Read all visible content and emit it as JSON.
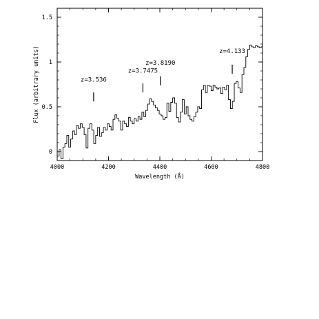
{
  "chart_data": {
    "type": "line",
    "title": "",
    "xlabel": "Wavelength (Å)",
    "ylabel": "Flux (arbitrary units)",
    "xlim": [
      4000,
      4800
    ],
    "ylim": [
      -0.1,
      1.6
    ],
    "x_ticks": [
      {
        "value": 4000,
        "label": "4000"
      },
      {
        "value": 4200,
        "label": "4200"
      },
      {
        "value": 4400,
        "label": "4400"
      },
      {
        "value": 4600,
        "label": "4600"
      },
      {
        "value": 4800,
        "label": "4800"
      }
    ],
    "y_ticks": [
      {
        "value": 0,
        "label": "0"
      },
      {
        "value": 0.5,
        "label": "0.5"
      },
      {
        "value": 1,
        "label": "1"
      },
      {
        "value": 1.5,
        "label": "1.5"
      }
    ],
    "x_minor_step": 50,
    "y_minor_step": 0.1,
    "grid": false,
    "line_color": "#000000",
    "step_width": 7.5,
    "annotations": [
      {
        "text": "z=3.536",
        "x": 4142,
        "mark_y": [
          0.56,
          0.66
        ],
        "label_y": 0.78
      },
      {
        "text": "z=3.7475",
        "x": 4334,
        "mark_y": [
          0.66,
          0.76
        ],
        "label_y": 0.88
      },
      {
        "text": "z=3.8190",
        "x": 4402,
        "mark_y": [
          0.74,
          0.84
        ],
        "label_y": 0.97
      },
      {
        "text": "z=4.133",
        "x": 4682,
        "mark_y": [
          0.87,
          0.97
        ],
        "label_y": 1.1
      }
    ],
    "series": [
      {
        "x": [
          4000,
          4007.5,
          4015,
          4022.5,
          4030,
          4037.5,
          4045,
          4052.5,
          4060,
          4067.5,
          4075,
          4082.5,
          4090,
          4097.5,
          4105,
          4112.5,
          4120,
          4127.5,
          4135,
          4142.5,
          4150,
          4157.5,
          4165,
          4172.5,
          4180,
          4187.5,
          4195,
          4202.5,
          4210,
          4217.5,
          4225,
          4232.5,
          4240,
          4247.5,
          4255,
          4262.5,
          4270,
          4277.5,
          4285,
          4292.5,
          4300,
          4307.5,
          4315,
          4322.5,
          4330,
          4337.5,
          4345,
          4352.5,
          4360,
          4367.5,
          4375,
          4382.5,
          4390,
          4397.5,
          4405,
          4412.5,
          4420,
          4427.5,
          4435,
          4442.5,
          4450,
          4457.5,
          4465,
          4472.5,
          4480,
          4487.5,
          4495,
          4502.5,
          4510,
          4517.5,
          4525,
          4532.5,
          4540,
          4547.5,
          4555,
          4562.5,
          4570,
          4577.5,
          4585,
          4592.5,
          4600,
          4607.5,
          4615,
          4622.5,
          4630,
          4637.5,
          4645,
          4652.5,
          4660,
          4667.5,
          4675,
          4682.5,
          4690,
          4697.5,
          4705,
          4712.5,
          4720,
          4727.5,
          4735,
          4742.5,
          4750,
          4757.5,
          4765,
          4772.5,
          4780,
          4787.5,
          4795
        ],
        "y": [
          -0.05,
          0.02,
          -0.08,
          0.05,
          0.09,
          0.18,
          0.05,
          0.14,
          0.23,
          0.19,
          0.29,
          0.26,
          0.31,
          0.27,
          0.19,
          0.04,
          0.26,
          0.31,
          0.24,
          0.09,
          0.18,
          0.27,
          0.17,
          0.21,
          0.27,
          0.24,
          0.31,
          0.28,
          0.24,
          0.36,
          0.41,
          0.37,
          0.34,
          0.24,
          0.34,
          0.31,
          0.28,
          0.38,
          0.34,
          0.31,
          0.37,
          0.34,
          0.39,
          0.36,
          0.44,
          0.39,
          0.46,
          0.53,
          0.59,
          0.56,
          0.52,
          0.49,
          0.46,
          0.42,
          0.4,
          0.36,
          0.38,
          0.54,
          0.45,
          0.55,
          0.6,
          0.54,
          0.38,
          0.33,
          0.44,
          0.58,
          0.42,
          0.5,
          0.4,
          0.36,
          0.34,
          0.39,
          0.44,
          0.5,
          0.48,
          0.69,
          0.74,
          0.66,
          0.74,
          0.73,
          0.68,
          0.74,
          0.72,
          0.7,
          0.71,
          0.65,
          0.72,
          0.69,
          0.74,
          0.58,
          0.48,
          0.56,
          0.76,
          0.78,
          0.71,
          0.66,
          0.86,
          0.94,
          1.06,
          1.14,
          1.19,
          1.17,
          1.16,
          1.18,
          1.17,
          1.16,
          1.17
        ]
      }
    ]
  }
}
